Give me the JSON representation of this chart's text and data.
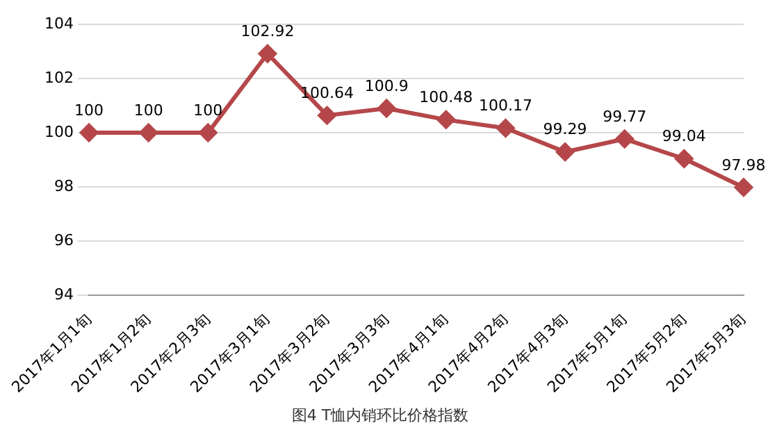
{
  "chart_data": {
    "type": "line",
    "title": "图4 T恤内销环比价格指数",
    "categories": [
      "2017年1月1旬",
      "2017年1月2旬",
      "2017年2月3旬",
      "2017年3月1旬",
      "2017年3月2旬",
      "2017年3月3旬",
      "2017年4月1旬",
      "2017年4月2旬",
      "2017年4月3旬",
      "2017年5月1旬",
      "2017年5月2旬",
      "2017年5月3旬"
    ],
    "values": [
      100,
      100,
      100,
      102.92,
      100.64,
      100.9,
      100.48,
      100.17,
      99.29,
      99.77,
      99.04,
      97.98
    ],
    "color": "#b5474a",
    "marker": "diamond",
    "line_style": "solid",
    "data_labels": true,
    "grid": "y",
    "legend": false,
    "ylim": [
      94,
      104
    ],
    "yticks": [
      94,
      96,
      98,
      100,
      102,
      104
    ]
  }
}
